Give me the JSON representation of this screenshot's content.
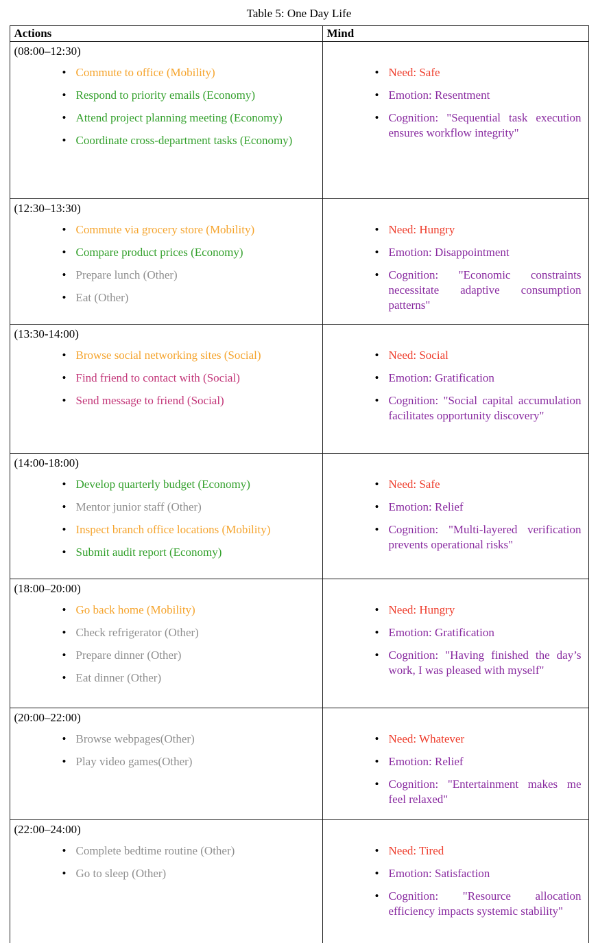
{
  "title": "Table 5: One Day Life",
  "header": {
    "actions": "Actions",
    "mind": "Mind"
  },
  "palette": {
    "orange": "#F5A42D",
    "green": "#33A02C",
    "gray": "#8E8E8E",
    "pink": "#C23578",
    "red": "#EE3C2B",
    "purple": "#892BA0",
    "black": "#000000"
  },
  "rows": [
    {
      "time": "(08:00–12:30)",
      "actions": [
        {
          "text": "Commute to office (Mobility)",
          "color": "orange"
        },
        {
          "text": "Respond to priority emails (Economy)",
          "color": "green"
        },
        {
          "text": "Attend project planning meeting (Economy)",
          "color": "green"
        },
        {
          "text": "Coordinate cross-department tasks (Economy)",
          "color": "green"
        }
      ],
      "mind": [
        {
          "label": "Need: Safe",
          "color": "red"
        },
        {
          "label": "Emotion: Resentment",
          "color": "purple"
        },
        {
          "label": "Cognition: \"Sequential task execution ensures workflow integrity\"",
          "color": "purple"
        }
      ]
    },
    {
      "time": "(12:30–13:30)",
      "actions": [
        {
          "text": "Commute via grocery store (Mobility)",
          "color": "orange"
        },
        {
          "text": "Compare product prices (Economy)",
          "color": "green"
        },
        {
          "text": "Prepare lunch (Other)",
          "color": "gray"
        },
        {
          "text": "Eat (Other)",
          "color": "gray"
        }
      ],
      "mind": [
        {
          "label": "Need: Hungry",
          "color": "red"
        },
        {
          "label": "Emotion: Disappointment",
          "color": "purple"
        },
        {
          "label": "Cognition: \"Economic constraints necessitate adaptive consumption patterns\"",
          "color": "purple"
        }
      ]
    },
    {
      "time": "(13:30-14:00)",
      "actions": [
        {
          "text": "Browse social networking sites (Social)",
          "color": "orange"
        },
        {
          "text": "Find friend to contact with (Social)",
          "color": "pink"
        },
        {
          "text": "Send message to friend (Social)",
          "color": "pink"
        }
      ],
      "mind": [
        {
          "label": "Need: Social",
          "color": "red"
        },
        {
          "label": "Emotion: Gratification",
          "color": "purple"
        },
        {
          "label": "Cognition: \"Social capital accumulation facilitates opportunity discovery\"",
          "color": "purple"
        }
      ]
    },
    {
      "time": "(14:00-18:00)",
      "actions": [
        {
          "text": "Develop quarterly budget (Economy)",
          "color": "green"
        },
        {
          "text": "Mentor junior staff (Other)",
          "color": "gray"
        },
        {
          "text": "Inspect branch office locations (Mobility)",
          "color": "orange"
        },
        {
          "text": "Submit audit report (Economy)",
          "color": "green"
        }
      ],
      "mind": [
        {
          "label": "Need: Safe",
          "color": "red"
        },
        {
          "label": "Emotion: Relief",
          "color": "purple"
        },
        {
          "label": "Cognition: \"Multi-layered verification prevents operational risks\"",
          "color": "purple"
        }
      ]
    },
    {
      "time": "(18:00–20:00)",
      "actions": [
        {
          "text": "Go back home (Mobility)",
          "color": "orange"
        },
        {
          "text": "Check refrigerator (Other)",
          "color": "gray"
        },
        {
          "text": "Prepare dinner (Other)",
          "color": "gray"
        },
        {
          "text": "Eat dinner (Other)",
          "color": "gray"
        }
      ],
      "mind": [
        {
          "label": "Need: Hungry",
          "color": "red"
        },
        {
          "label": "Emotion: Gratification",
          "color": "purple"
        },
        {
          "label": "Cognition: \"Having finished the day’s work, I was pleased with myself\"",
          "color": "purple"
        }
      ]
    },
    {
      "time": "(20:00–22:00)",
      "actions": [
        {
          "text": "Browse webpages(Other)",
          "color": "gray"
        },
        {
          "text": "Play video games(Other)",
          "color": "gray"
        }
      ],
      "mind": [
        {
          "label": "Need: Whatever",
          "color": "red"
        },
        {
          "label": "Emotion: Relief",
          "color": "purple"
        },
        {
          "label": "Cognition: \"Entertainment makes me feel relaxed\"",
          "color": "purple"
        }
      ]
    },
    {
      "time": "(22:00–24:00)",
      "actions": [
        {
          "text": "Complete bedtime routine (Other)",
          "color": "gray"
        },
        {
          "text": "Go to sleep (Other)",
          "color": "gray"
        }
      ],
      "mind": [
        {
          "label": "Need: Tired",
          "color": "red"
        },
        {
          "label": "Emotion: Satisfaction",
          "color": "purple"
        },
        {
          "label": "Cognition: \"Resource allocation efficiency impacts systemic stability\"",
          "color": "purple"
        }
      ]
    }
  ]
}
